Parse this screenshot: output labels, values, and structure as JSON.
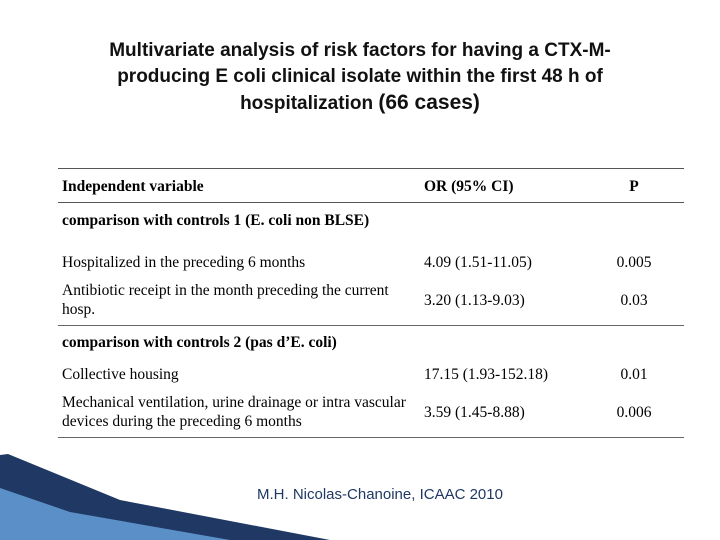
{
  "title": {
    "line1": "Multivariate analysis of risk factors for having a CTX-M-",
    "line2": "producing E coli clinical isolate within the first 48 h of",
    "line3_a": "hospitalization ",
    "line3_b": "(66 cases)"
  },
  "table": {
    "headers": {
      "variable": "Independent variable",
      "or": "OR (95% CI)",
      "p": "P"
    },
    "group1": "comparison with controls 1 (E. coli non BLSE)",
    "rows1": [
      {
        "variable": "Hospitalized in the preceding 6 months",
        "or": "4.09 (1.51-11.05)",
        "p": "0.005"
      },
      {
        "variable": "Antibiotic receipt in the month preceding the current hosp.",
        "or": "3.20 (1.13-9.03)",
        "p": "0.03"
      }
    ],
    "group2": "comparison with controls 2 (pas d’E. coli)",
    "rows2": [
      {
        "variable": "Collective housing",
        "or": "17.15 (1.93-152.18)",
        "p": "0.01"
      },
      {
        "variable": "Mechanical ventilation, urine drainage or intra vascular devices during the preceding 6 months",
        "or": "3.59 (1.45-8.88)",
        "p": "0.006"
      }
    ]
  },
  "credit": "M.H. Nicolas-Chanoine, ICAAC 2010",
  "colors": {
    "credit": "#1f3864",
    "decoration_dark": "#1f3864",
    "decoration_light": "#5b8fc7"
  }
}
